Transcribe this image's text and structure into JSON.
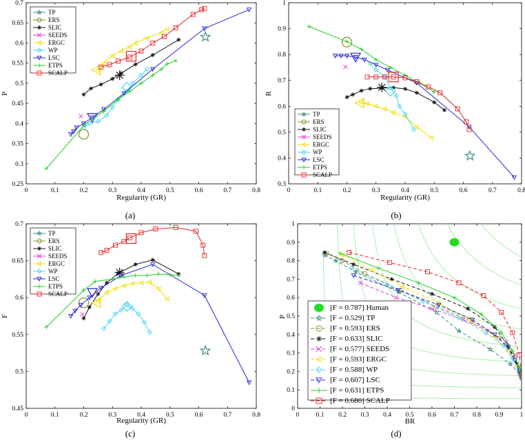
{
  "colors": {
    "TP": "#3a8f86",
    "ERS": "#8a8a2a",
    "SLIC": "#111111",
    "SEEDS": "#e03ad8",
    "ERGC": "#f2e000",
    "WP": "#49d3f2",
    "LSC": "#2424d0",
    "ETPS": "#22cc22",
    "SCALP": "#e02424",
    "Human": "#22dd22",
    "isoF": "#a8eea8"
  },
  "chart_data": [
    {
      "panel": "a",
      "type": "line",
      "caption": "(a)",
      "xlabel": "Regularity (GR)",
      "ylabel": "P",
      "xlim": [
        0,
        0.8
      ],
      "ylim": [
        0.25,
        0.7
      ],
      "xticks": [
        "0",
        "0.1",
        "0.2",
        "0.3",
        "0.4",
        "0.5",
        "0.6",
        "0.7",
        "0.8"
      ],
      "yticks": [
        "0.25",
        "0.3",
        "0.35",
        "0.4",
        "0.45",
        "0.5",
        "0.55",
        "0.6",
        "0.65",
        "0.7"
      ],
      "legend_position": "top-left",
      "series": [
        {
          "name": "TP",
          "x": [],
          "y": [],
          "big": [
            0.623,
            0.615
          ]
        },
        {
          "name": "ERS",
          "x": [],
          "y": [],
          "big": [
            0.2,
            0.373
          ]
        },
        {
          "name": "SLIC",
          "x": [
            0.2,
            0.225,
            0.26,
            0.3,
            0.33,
            0.38,
            0.44,
            0.53
          ],
          "y": [
            0.472,
            0.487,
            0.497,
            0.511,
            0.525,
            0.547,
            0.57,
            0.608
          ],
          "big": [
            0.325,
            0.52
          ]
        },
        {
          "name": "SEEDS",
          "x": [
            0.19
          ],
          "y": [
            0.418
          ],
          "big": null
        },
        {
          "name": "ERGC",
          "x": [
            0.25,
            0.27,
            0.3,
            0.33,
            0.36,
            0.38,
            0.42,
            0.47,
            0.49
          ],
          "y": [
            0.533,
            0.55,
            0.568,
            0.58,
            0.59,
            0.6,
            0.612,
            0.625,
            0.634
          ],
          "big": [
            0.245,
            0.533
          ]
        },
        {
          "name": "WP",
          "x": [
            0.2,
            0.22,
            0.25,
            0.28,
            0.3,
            0.32,
            0.35,
            0.37,
            0.4,
            0.42
          ],
          "y": [
            0.39,
            0.4,
            0.405,
            0.42,
            0.44,
            0.46,
            0.48,
            0.5,
            0.52,
            0.535
          ],
          "big": [
            0.35,
            0.49
          ]
        },
        {
          "name": "LSC",
          "x": [
            0.155,
            0.165,
            0.175,
            0.2,
            0.23,
            0.27,
            0.34,
            0.44,
            0.62,
            0.775
          ],
          "y": [
            0.373,
            0.38,
            0.39,
            0.4,
            0.415,
            0.435,
            0.475,
            0.535,
            0.636,
            0.683
          ],
          "big": [
            0.23,
            0.415
          ]
        },
        {
          "name": "ETPS",
          "x": [
            0.07,
            0.2,
            0.27,
            0.32,
            0.36,
            0.4,
            0.44,
            0.47,
            0.49,
            0.52
          ],
          "y": [
            0.288,
            0.395,
            0.43,
            0.46,
            0.48,
            0.5,
            0.52,
            0.535,
            0.548,
            0.556
          ],
          "big": null
        },
        {
          "name": "SCALP",
          "x": [
            0.26,
            0.29,
            0.32,
            0.36,
            0.4,
            0.44,
            0.48,
            0.52,
            0.58,
            0.61,
            0.62
          ],
          "y": [
            0.54,
            0.546,
            0.555,
            0.565,
            0.58,
            0.6,
            0.616,
            0.638,
            0.671,
            0.683,
            0.686
          ],
          "big": [
            0.365,
            0.567
          ]
        }
      ]
    },
    {
      "panel": "b",
      "type": "line",
      "caption": "(b)",
      "xlabel": "Regularity (GR)",
      "ylabel": "R",
      "xlim": [
        0,
        0.8
      ],
      "ylim": [
        0.3,
        1
      ],
      "xticks": [
        "0",
        "0.1",
        "0.2",
        "0.3",
        "0.4",
        "0.5",
        "0.6",
        "0.7",
        "0.8"
      ],
      "yticks": [
        "0.3",
        "0.4",
        "0.5",
        "0.6",
        "0.7",
        "0.8",
        "0.9",
        "1"
      ],
      "legend_position": "bottom-left",
      "series": [
        {
          "name": "TP",
          "x": [],
          "y": [],
          "big": [
            0.623,
            0.408
          ]
        },
        {
          "name": "ERS",
          "x": [],
          "y": [],
          "big": [
            0.2,
            0.848
          ]
        },
        {
          "name": "SLIC",
          "x": [
            0.2,
            0.22,
            0.25,
            0.28,
            0.32,
            0.36,
            0.4,
            0.44,
            0.5,
            0.535
          ],
          "y": [
            0.635,
            0.645,
            0.66,
            0.668,
            0.67,
            0.672,
            0.667,
            0.652,
            0.615,
            0.585
          ],
          "big": [
            0.32,
            0.673
          ]
        },
        {
          "name": "SEEDS",
          "x": [
            0.195
          ],
          "y": [
            0.752
          ],
          "big": null
        },
        {
          "name": "ERGC",
          "x": [
            0.25,
            0.27,
            0.3,
            0.33,
            0.36,
            0.4,
            0.44,
            0.49
          ],
          "y": [
            0.615,
            0.61,
            0.6,
            0.59,
            0.575,
            0.56,
            0.52,
            0.478
          ],
          "big": [
            0.245,
            0.612
          ]
        },
        {
          "name": "WP",
          "x": [
            0.28,
            0.3,
            0.33,
            0.35,
            0.37,
            0.38,
            0.4,
            0.43
          ],
          "y": [
            0.765,
            0.74,
            0.715,
            0.67,
            0.64,
            0.6,
            0.57,
            0.51
          ],
          "big": [
            0.35,
            0.658
          ]
        },
        {
          "name": "LSC",
          "x": [
            0.16,
            0.18,
            0.2,
            0.23,
            0.26,
            0.3,
            0.34,
            0.44,
            0.62,
            0.775
          ],
          "y": [
            0.795,
            0.795,
            0.795,
            0.79,
            0.78,
            0.76,
            0.74,
            0.69,
            0.52,
            0.325
          ],
          "big": [
            0.23,
            0.79
          ]
        },
        {
          "name": "ETPS",
          "x": [
            0.07,
            0.2,
            0.25,
            0.3,
            0.35,
            0.4,
            0.45,
            0.5
          ],
          "y": [
            0.908,
            0.85,
            0.82,
            0.78,
            0.75,
            0.72,
            0.69,
            0.655
          ],
          "big": null
        },
        {
          "name": "SCALP",
          "x": [
            0.27,
            0.3,
            0.33,
            0.36,
            0.4,
            0.44,
            0.48,
            0.52,
            0.58,
            0.61,
            0.62
          ],
          "y": [
            0.713,
            0.713,
            0.713,
            0.713,
            0.71,
            0.695,
            0.675,
            0.652,
            0.59,
            0.54,
            0.51
          ],
          "big": [
            0.36,
            0.713
          ]
        }
      ]
    },
    {
      "panel": "c",
      "type": "line",
      "caption": "(c)",
      "xlabel": "Regularity (GR)",
      "ylabel": "F",
      "xlim": [
        0,
        0.8
      ],
      "ylim": [
        0.45,
        0.7
      ],
      "xticks": [
        "0",
        "0.1",
        "0.2",
        "0.3",
        "0.4",
        "0.5",
        "0.6",
        "0.7",
        "0.8"
      ],
      "yticks": [
        "0.45",
        "0.5",
        "0.55",
        "0.6",
        "0.65",
        "0.7"
      ],
      "legend_position": "top-left",
      "series": [
        {
          "name": "TP",
          "x": [],
          "y": [],
          "big": [
            0.623,
            0.528
          ]
        },
        {
          "name": "ERS",
          "x": [],
          "y": [],
          "big": [
            0.2,
            0.593
          ]
        },
        {
          "name": "SLIC",
          "x": [
            0.2,
            0.22,
            0.25,
            0.28,
            0.32,
            0.38,
            0.44,
            0.53
          ],
          "y": [
            0.572,
            0.587,
            0.605,
            0.62,
            0.633,
            0.645,
            0.651,
            0.632
          ],
          "big": [
            0.325,
            0.634
          ]
        },
        {
          "name": "SEEDS",
          "x": [
            0.195
          ],
          "y": [
            0.577
          ],
          "big": null
        },
        {
          "name": "ERGC",
          "x": [
            0.25,
            0.28,
            0.31,
            0.34,
            0.37,
            0.4,
            0.43,
            0.46,
            0.49
          ],
          "y": [
            0.595,
            0.607,
            0.612,
            0.616,
            0.619,
            0.62,
            0.621,
            0.612,
            0.598
          ],
          "big": [
            0.245,
            0.593
          ]
        },
        {
          "name": "WP",
          "x": [
            0.27,
            0.29,
            0.31,
            0.33,
            0.35,
            0.37,
            0.39,
            0.41,
            0.43
          ],
          "y": [
            0.558,
            0.568,
            0.578,
            0.583,
            0.59,
            0.585,
            0.578,
            0.567,
            0.553
          ],
          "big": [
            0.35,
            0.588
          ]
        },
        {
          "name": "LSC",
          "x": [
            0.155,
            0.17,
            0.19,
            0.22,
            0.26,
            0.33,
            0.44,
            0.62,
            0.775
          ],
          "y": [
            0.575,
            0.582,
            0.59,
            0.6,
            0.613,
            0.63,
            0.645,
            0.603,
            0.485
          ],
          "big": [
            0.23,
            0.607
          ]
        },
        {
          "name": "ETPS",
          "x": [
            0.07,
            0.2,
            0.24,
            0.3,
            0.34,
            0.38,
            0.42,
            0.46,
            0.5,
            0.53
          ],
          "y": [
            0.56,
            0.61,
            0.622,
            0.625,
            0.628,
            0.63,
            0.63,
            0.632,
            0.631,
            0.63
          ],
          "big": null
        },
        {
          "name": "SCALP",
          "x": [
            0.26,
            0.28,
            0.31,
            0.34,
            0.36,
            0.4,
            0.45,
            0.52,
            0.59,
            0.615,
            0.62
          ],
          "y": [
            0.661,
            0.664,
            0.671,
            0.676,
            0.681,
            0.688,
            0.693,
            0.695,
            0.69,
            0.671,
            0.657
          ],
          "big": [
            0.365,
            0.68
          ]
        }
      ]
    },
    {
      "panel": "d",
      "type": "line",
      "caption": "(d)",
      "xlabel": "BR",
      "ylabel": "P",
      "xlim": [
        0,
        1
      ],
      "ylim": [
        0,
        1
      ],
      "xticks": [
        "0",
        "0.1",
        "0.2",
        "0.3",
        "0.4",
        "0.5",
        "0.6",
        "0.7",
        "0.8",
        "0.9",
        "1"
      ],
      "yticks": [
        "0",
        "0.1",
        "0.2",
        "0.3",
        "0.4",
        "0.5",
        "0.6",
        "0.7",
        "0.8",
        "0.9",
        "1"
      ],
      "iso_f": [
        0.1,
        0.2,
        0.3,
        0.4,
        0.5,
        0.6,
        0.7,
        0.8,
        0.9
      ],
      "human": {
        "x": 0.7,
        "y": 0.9
      },
      "legend_position": "bottom-left",
      "legend": [
        {
          "key": "Human",
          "label": "[F = 0.787]  Human"
        },
        {
          "key": "TP",
          "label": "[F = 0.529]  TP"
        },
        {
          "key": "ERS",
          "label": "[F = 0.593]  ERS"
        },
        {
          "key": "SLIC",
          "label": "[F = 0.633]  SLIC"
        },
        {
          "key": "SEEDS",
          "label": "[F = 0.577]  SEEDS"
        },
        {
          "key": "ERGC",
          "label": "[F = 0.593]  ERGC"
        },
        {
          "key": "WP",
          "label": "[F = 0.588]  WP"
        },
        {
          "key": "LSC",
          "label": "[F = 0.607]  LSC"
        },
        {
          "key": "ETPS",
          "label": "[F = 0.631]  ETPS"
        },
        {
          "key": "SCALP",
          "label": "[F = 0.680]  SCALP"
        }
      ],
      "series": [
        {
          "name": "TP",
          "x": [
            0.12,
            0.17,
            0.26,
            0.45,
            0.62,
            0.72,
            0.86,
            0.95,
            0.99,
            1.0
          ],
          "y": [
            0.83,
            0.8,
            0.74,
            0.63,
            0.52,
            0.42,
            0.32,
            0.24,
            0.19,
            0.16
          ],
          "big": null
        },
        {
          "name": "ERS",
          "x": [
            0.13,
            0.2,
            0.3,
            0.46,
            0.62,
            0.78,
            0.9,
            0.96,
            0.99,
            1.0
          ],
          "y": [
            0.84,
            0.8,
            0.73,
            0.64,
            0.55,
            0.47,
            0.38,
            0.29,
            0.22,
            0.17
          ],
          "big": null
        },
        {
          "name": "SLIC",
          "x": [
            0.12,
            0.25,
            0.42,
            0.6,
            0.76,
            0.88,
            0.94,
            0.98,
            1.0
          ],
          "y": [
            0.845,
            0.78,
            0.7,
            0.62,
            0.54,
            0.44,
            0.34,
            0.24,
            0.17
          ],
          "big": null
        },
        {
          "name": "SEEDS",
          "x": [
            0.28,
            0.44,
            0.6,
            0.74,
            0.85,
            0.93,
            0.97,
            0.99,
            1.0
          ],
          "y": [
            0.68,
            0.6,
            0.54,
            0.48,
            0.42,
            0.36,
            0.29,
            0.22,
            0.17
          ],
          "big": null
        },
        {
          "name": "ERGC",
          "x": [
            0.2,
            0.33,
            0.47,
            0.63,
            0.77,
            0.88,
            0.94,
            0.98,
            1.0
          ],
          "y": [
            0.83,
            0.75,
            0.66,
            0.57,
            0.48,
            0.39,
            0.31,
            0.23,
            0.17
          ],
          "big": null
        },
        {
          "name": "WP",
          "x": [
            0.24,
            0.4,
            0.56,
            0.72,
            0.84,
            0.92,
            0.96,
            0.99,
            1.0
          ],
          "y": [
            0.76,
            0.67,
            0.58,
            0.49,
            0.41,
            0.34,
            0.27,
            0.21,
            0.17
          ],
          "big": null
        },
        {
          "name": "LSC",
          "x": [
            0.25,
            0.45,
            0.63,
            0.78,
            0.88,
            0.94,
            0.97,
            0.99,
            1.0
          ],
          "y": [
            0.72,
            0.64,
            0.56,
            0.48,
            0.4,
            0.33,
            0.26,
            0.2,
            0.17
          ],
          "big": null
        },
        {
          "name": "ETPS",
          "x": [
            0.19,
            0.36,
            0.54,
            0.7,
            0.82,
            0.91,
            0.96,
            0.99,
            1.0
          ],
          "y": [
            0.84,
            0.76,
            0.68,
            0.6,
            0.51,
            0.41,
            0.31,
            0.22,
            0.16
          ],
          "big": null
        },
        {
          "name": "SCALP",
          "x": [
            0.23,
            0.41,
            0.58,
            0.72,
            0.83,
            0.91,
            0.96,
            0.99,
            1.0
          ],
          "y": [
            0.845,
            0.79,
            0.74,
            0.68,
            0.61,
            0.52,
            0.41,
            0.29,
            0.18
          ],
          "big": null
        }
      ]
    }
  ]
}
